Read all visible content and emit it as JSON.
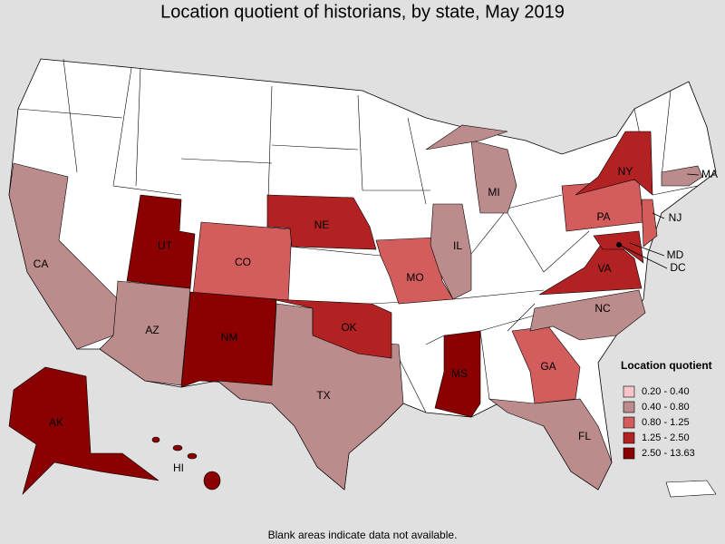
{
  "title": "Location quotient of historians, by state, May 2019",
  "legend": {
    "title": "Location quotient",
    "items": [
      {
        "label": "0.20 - 0.40",
        "color": "#f7c4cb"
      },
      {
        "label": "0.40 - 0.80",
        "color": "#bc8b8b"
      },
      {
        "label": "0.80 - 1.25",
        "color": "#d35c5c"
      },
      {
        "label": "1.25 - 2.50",
        "color": "#b22222"
      },
      {
        "label": "2.50 - 13.63",
        "color": "#8b0000"
      }
    ]
  },
  "states": [
    {
      "abbr": "CA",
      "class": 1
    },
    {
      "abbr": "AZ",
      "class": 1
    },
    {
      "abbr": "UT",
      "class": 4
    },
    {
      "abbr": "CO",
      "class": 2
    },
    {
      "abbr": "NM",
      "class": 4
    },
    {
      "abbr": "TX",
      "class": 1
    },
    {
      "abbr": "OK",
      "class": 3
    },
    {
      "abbr": "NE",
      "class": 3
    },
    {
      "abbr": "MO",
      "class": 2
    },
    {
      "abbr": "IL",
      "class": 1
    },
    {
      "abbr": "MI",
      "class": 1
    },
    {
      "abbr": "GA",
      "class": 2
    },
    {
      "abbr": "FL",
      "class": 1
    },
    {
      "abbr": "NC",
      "class": 1
    },
    {
      "abbr": "VA",
      "class": 3
    },
    {
      "abbr": "MS",
      "class": 4
    },
    {
      "abbr": "PA",
      "class": 2
    },
    {
      "abbr": "NY",
      "class": 3
    },
    {
      "abbr": "NJ",
      "class": 2
    },
    {
      "abbr": "MA",
      "class": 1
    },
    {
      "abbr": "MD",
      "class": 3
    },
    {
      "abbr": "DC",
      "class": 4
    },
    {
      "abbr": "AK",
      "class": 4
    },
    {
      "abbr": "HI",
      "class": 4
    }
  ],
  "footnote": "Blank areas indicate data not available."
}
